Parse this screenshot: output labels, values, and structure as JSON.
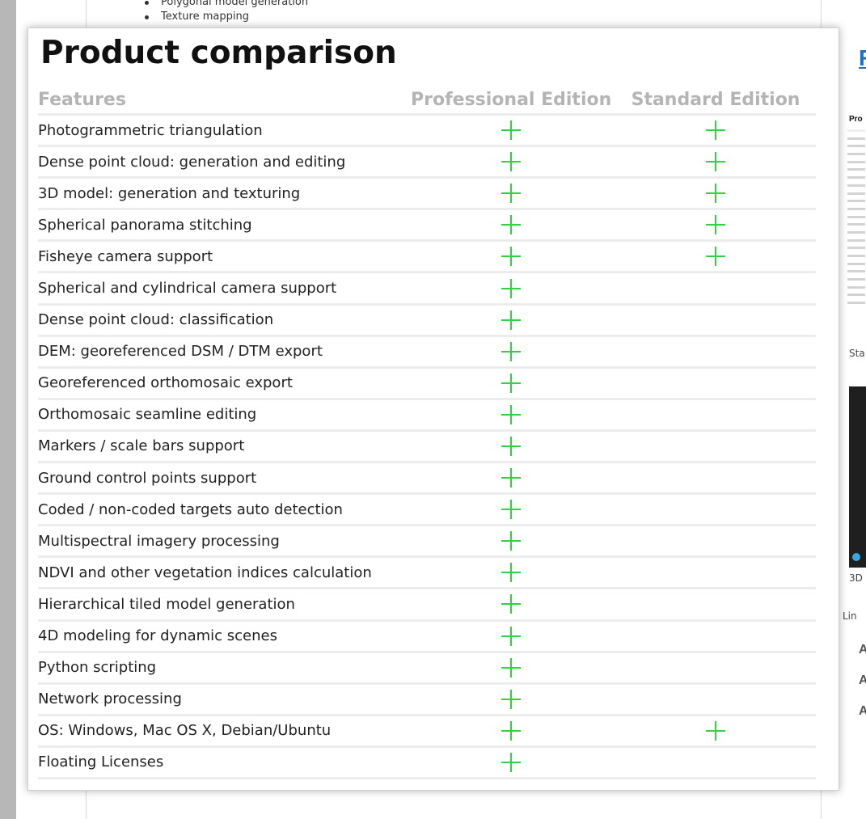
{
  "background_list": [
    "Polygonal model generation",
    "Texture mapping"
  ],
  "title": "Product comparison",
  "headers": {
    "features": "Features",
    "professional": "Professional Edition",
    "standard": "Standard Edition"
  },
  "rows": [
    {
      "feature": "Photogrammetric triangulation",
      "professional": true,
      "standard": true
    },
    {
      "feature": "Dense point cloud: generation and editing",
      "professional": true,
      "standard": true
    },
    {
      "feature": "3D model: generation and texturing",
      "professional": true,
      "standard": true
    },
    {
      "feature": "Spherical panorama stitching",
      "professional": true,
      "standard": true
    },
    {
      "feature": "Fisheye camera support",
      "professional": true,
      "standard": true
    },
    {
      "feature": "Spherical and cylindrical camera support",
      "professional": true,
      "standard": false
    },
    {
      "feature": "Dense point cloud: classification",
      "professional": true,
      "standard": false
    },
    {
      "feature": "DEM: georeferenced DSM / DTM export",
      "professional": true,
      "standard": false
    },
    {
      "feature": "Georeferenced orthomosaic export",
      "professional": true,
      "standard": false
    },
    {
      "feature": "Orthomosaic seamline editing",
      "professional": true,
      "standard": false
    },
    {
      "feature": "Markers / scale bars support",
      "professional": true,
      "standard": false
    },
    {
      "feature": "Ground control points support",
      "professional": true,
      "standard": false
    },
    {
      "feature": "Coded / non-coded targets auto detection",
      "professional": true,
      "standard": false
    },
    {
      "feature": "Multispectral imagery processing",
      "professional": true,
      "standard": false
    },
    {
      "feature": "NDVI and other vegetation indices calculation",
      "professional": true,
      "standard": false
    },
    {
      "feature": "Hierarchical tiled model generation",
      "professional": true,
      "standard": false
    },
    {
      "feature": "4D modeling for dynamic scenes",
      "professional": true,
      "standard": false
    },
    {
      "feature": "Python scripting",
      "professional": true,
      "standard": false
    },
    {
      "feature": "Network processing",
      "professional": true,
      "standard": false
    },
    {
      "feature": "OS: Windows, Mac OS X, Debian/Ubuntu",
      "professional": true,
      "standard": true
    },
    {
      "feature": "Floating Licenses",
      "professional": true,
      "standard": false
    }
  ],
  "right_column": {
    "link": "R",
    "thumb_title": "Pro",
    "text_sta": "Sta",
    "text_3d": "3D",
    "text_lin": "Lin",
    "bold_items": [
      "A",
      "A",
      "A"
    ]
  },
  "icons": {
    "check": "plus-icon",
    "check_color": "#2fd33f"
  }
}
